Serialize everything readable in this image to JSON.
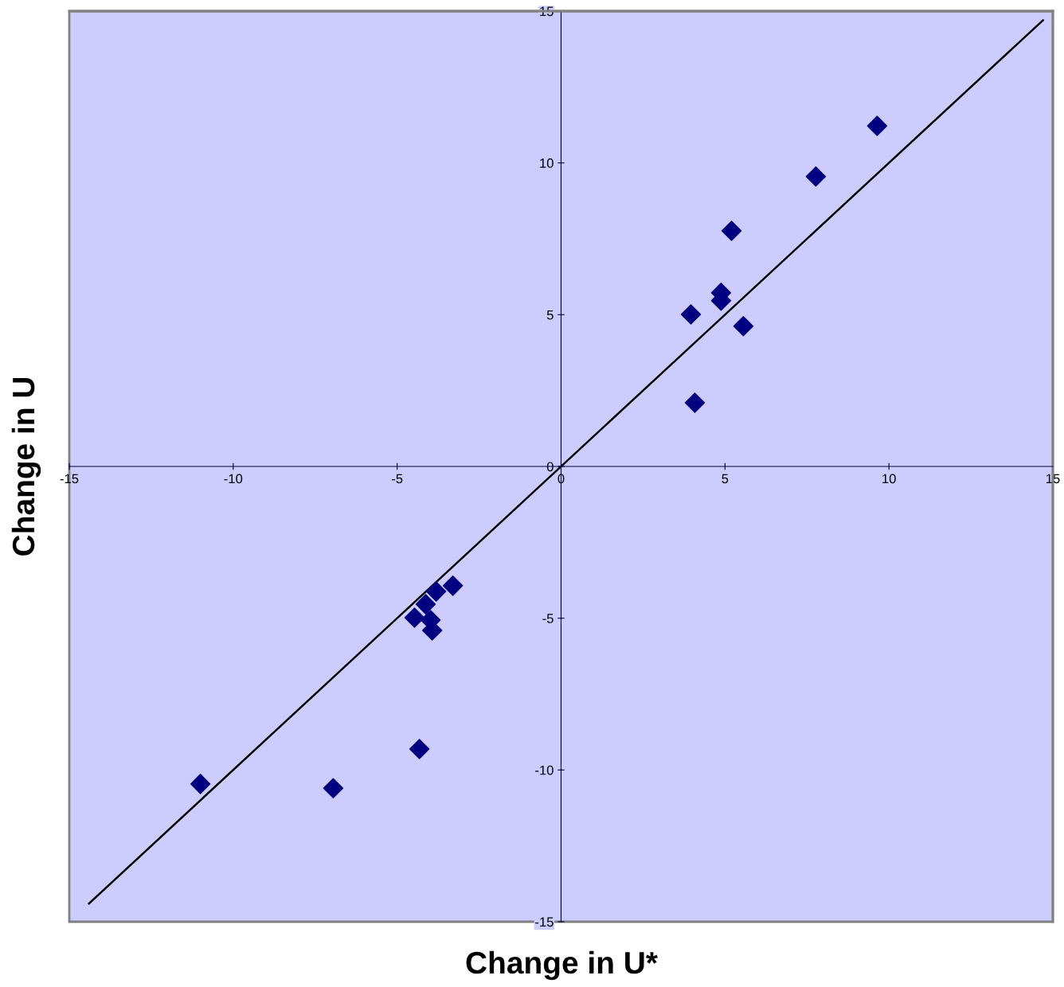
{
  "chart_data": {
    "type": "scatter",
    "xlabel": "Change in U*",
    "ylabel": "Change in U",
    "xlim": [
      -15,
      15
    ],
    "ylim": [
      -15,
      15
    ],
    "xticks": [
      -15,
      -10,
      -5,
      0,
      5,
      10,
      15
    ],
    "yticks": [
      -15,
      -10,
      -5,
      0,
      5,
      10,
      15
    ],
    "grid": false,
    "legend": false,
    "marker": "diamond",
    "series": [
      {
        "color": "#000080",
        "x": [
          9.64,
          7.77,
          5.2,
          4.88,
          4.88,
          3.96,
          5.56,
          4.08,
          -3.3,
          -3.81,
          -4.13,
          -4.47,
          -3.98,
          -3.93,
          -4.32,
          -6.95,
          -11.0
        ],
        "values": [
          11.22,
          9.55,
          7.76,
          5.72,
          5.46,
          5.01,
          4.62,
          2.1,
          -3.93,
          -4.12,
          -4.54,
          -4.98,
          -5.06,
          -5.4,
          -9.31,
          -10.6,
          -10.46
        ]
      },
      {
        "type": "line",
        "color": "#000000",
        "line_style": "solid",
        "marker": "none",
        "x": [
          -14.4,
          14.7
        ],
        "values": [
          -14.4,
          14.7
        ]
      }
    ]
  }
}
